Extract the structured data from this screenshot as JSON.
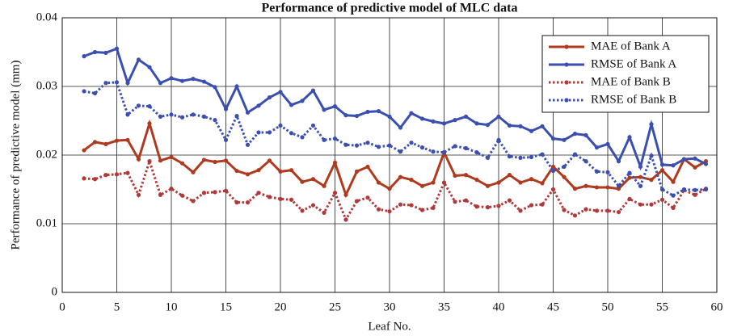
{
  "chart_data": {
    "type": "line",
    "title": "Performance of predictive model of MLC data",
    "xlabel": "Leaf No.",
    "ylabel": "Performance of predictive model (mm)",
    "x": [
      2,
      3,
      4,
      5,
      6,
      7,
      8,
      9,
      10,
      11,
      12,
      13,
      14,
      15,
      16,
      17,
      18,
      19,
      20,
      21,
      22,
      23,
      24,
      25,
      26,
      27,
      28,
      29,
      30,
      31,
      32,
      33,
      34,
      35,
      36,
      37,
      38,
      39,
      40,
      41,
      42,
      43,
      44,
      45,
      46,
      47,
      48,
      49,
      50,
      51,
      52,
      53,
      54,
      55,
      56,
      57,
      58,
      59
    ],
    "series": [
      {
        "name": "MAE of Bank A",
        "color": "#b03a1e",
        "style": "solid",
        "values": [
          0.0207,
          0.0219,
          0.0216,
          0.0221,
          0.0222,
          0.0194,
          0.0246,
          0.0192,
          0.0197,
          0.0188,
          0.0175,
          0.0193,
          0.019,
          0.0192,
          0.0177,
          0.0172,
          0.0178,
          0.0192,
          0.0176,
          0.0178,
          0.0161,
          0.0165,
          0.0155,
          0.0189,
          0.0142,
          0.0176,
          0.0183,
          0.016,
          0.0151,
          0.0168,
          0.0164,
          0.0155,
          0.016,
          0.0204,
          0.017,
          0.0171,
          0.0164,
          0.0155,
          0.016,
          0.0171,
          0.016,
          0.0165,
          0.0159,
          0.0183,
          0.0168,
          0.0151,
          0.0155,
          0.0153,
          0.0153,
          0.0151,
          0.0167,
          0.0168,
          0.0164,
          0.0178,
          0.0161,
          0.0194,
          0.0182,
          0.0191
        ]
      },
      {
        "name": "RMSE of Bank A",
        "color": "#3a4fb0",
        "style": "solid",
        "values": [
          0.0344,
          0.035,
          0.0349,
          0.0355,
          0.0305,
          0.0339,
          0.0328,
          0.0305,
          0.0312,
          0.0308,
          0.0311,
          0.0307,
          0.0299,
          0.0267,
          0.03,
          0.0262,
          0.0272,
          0.0284,
          0.0292,
          0.0273,
          0.0279,
          0.0294,
          0.0266,
          0.0271,
          0.0258,
          0.0257,
          0.0263,
          0.0264,
          0.0256,
          0.024,
          0.0261,
          0.0253,
          0.0249,
          0.0246,
          0.0251,
          0.0256,
          0.0246,
          0.0244,
          0.0256,
          0.0243,
          0.0242,
          0.0235,
          0.0242,
          0.0224,
          0.0222,
          0.0231,
          0.0229,
          0.0211,
          0.0216,
          0.0191,
          0.0226,
          0.0183,
          0.0245,
          0.0186,
          0.0185,
          0.0194,
          0.0195,
          0.0187
        ]
      },
      {
        "name": "MAE of Bank B",
        "color": "#b03a3a",
        "style": "dotted",
        "values": [
          0.0166,
          0.0165,
          0.0171,
          0.0172,
          0.0174,
          0.0142,
          0.0191,
          0.0142,
          0.0151,
          0.0141,
          0.0133,
          0.0145,
          0.0146,
          0.0148,
          0.0131,
          0.0131,
          0.0145,
          0.0139,
          0.0136,
          0.0135,
          0.0119,
          0.0127,
          0.0116,
          0.0145,
          0.0106,
          0.0133,
          0.0138,
          0.0121,
          0.0118,
          0.0128,
          0.0127,
          0.012,
          0.0123,
          0.016,
          0.0132,
          0.0134,
          0.0125,
          0.0124,
          0.0126,
          0.0134,
          0.0119,
          0.0127,
          0.0128,
          0.015,
          0.012,
          0.0112,
          0.0121,
          0.0119,
          0.0119,
          0.0117,
          0.0136,
          0.0128,
          0.0128,
          0.0135,
          0.0123,
          0.0149,
          0.0142,
          0.0151
        ]
      },
      {
        "name": "RMSE of Bank B",
        "color": "#3a4fb0",
        "style": "dotted",
        "values": [
          0.0293,
          0.029,
          0.0305,
          0.0306,
          0.0259,
          0.0272,
          0.0271,
          0.0256,
          0.0259,
          0.0255,
          0.0259,
          0.0256,
          0.0251,
          0.0222,
          0.0257,
          0.0215,
          0.0233,
          0.0233,
          0.0243,
          0.0232,
          0.0226,
          0.0243,
          0.0222,
          0.0224,
          0.0215,
          0.0214,
          0.0218,
          0.0212,
          0.0214,
          0.0205,
          0.0218,
          0.0211,
          0.0205,
          0.0204,
          0.0213,
          0.021,
          0.0204,
          0.0196,
          0.0222,
          0.0198,
          0.0196,
          0.0197,
          0.0201,
          0.0177,
          0.0183,
          0.0201,
          0.0191,
          0.0176,
          0.0175,
          0.0155,
          0.0174,
          0.0155,
          0.0199,
          0.015,
          0.0141,
          0.015,
          0.0149,
          0.015
        ]
      }
    ],
    "xlim": [
      0,
      60
    ],
    "xticks": [
      0,
      5,
      10,
      15,
      20,
      25,
      30,
      35,
      40,
      45,
      50,
      55,
      60
    ],
    "ylim": [
      0,
      0.04
    ],
    "yticks": [
      0,
      0.01,
      0.02,
      0.03,
      0.04
    ],
    "grid": true,
    "legend": "upper right"
  }
}
